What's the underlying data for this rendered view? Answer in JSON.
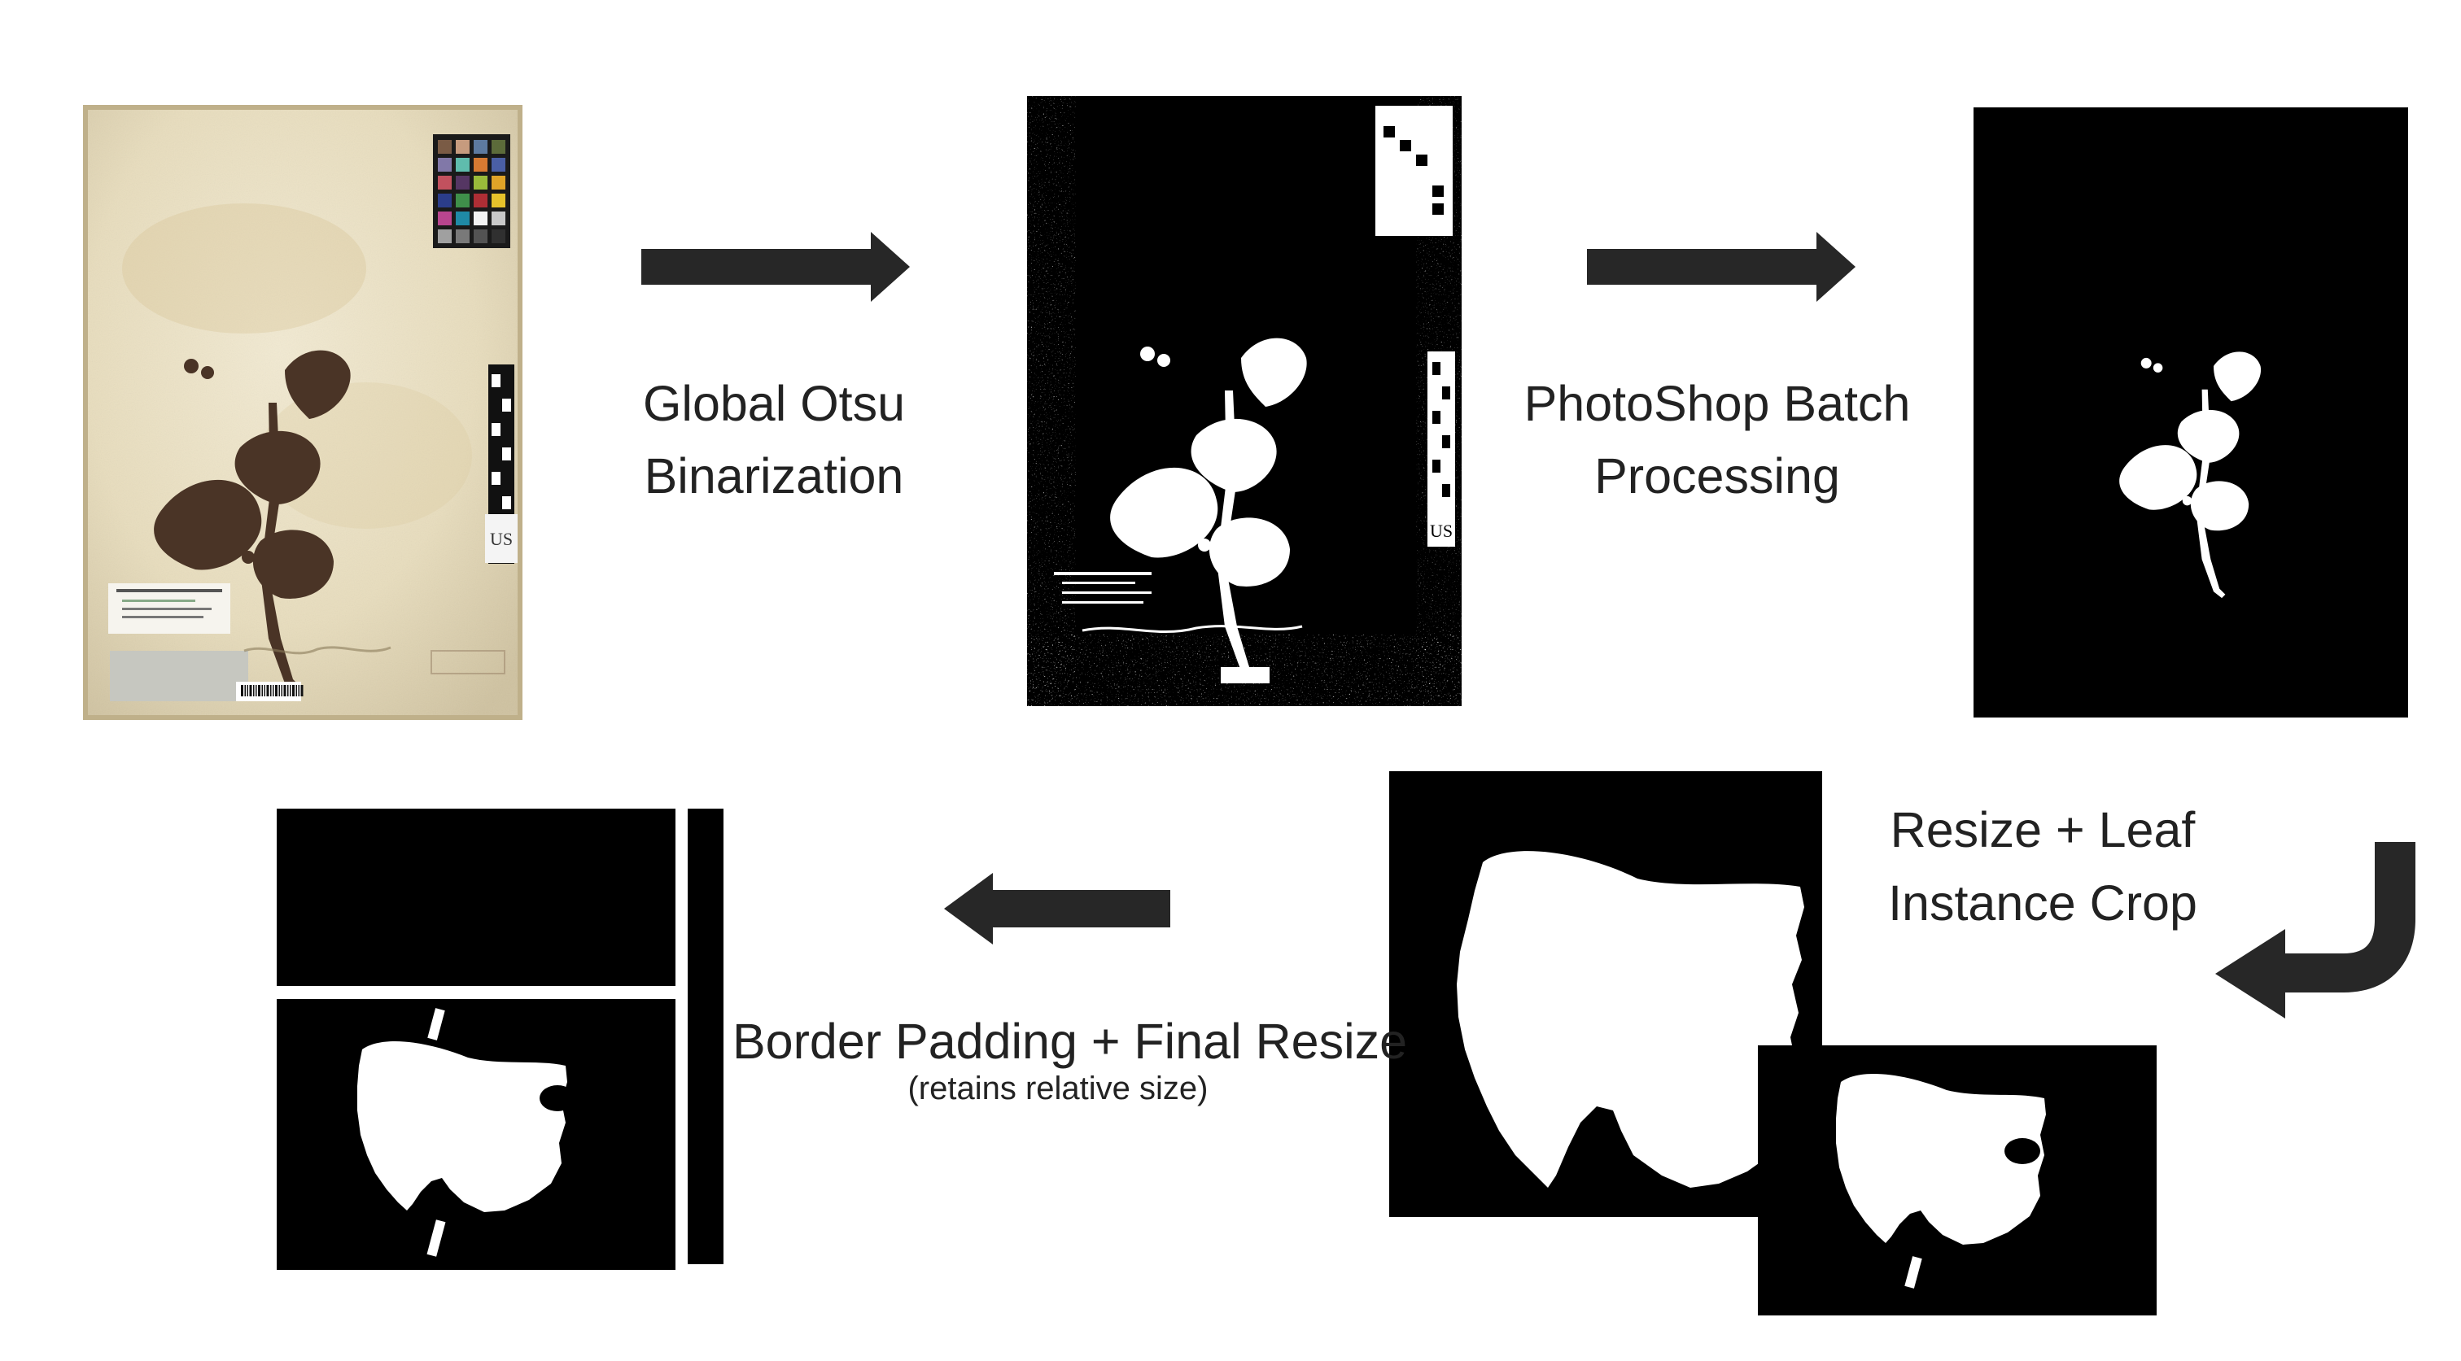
{
  "colors": {
    "background": "#ffffff",
    "arrow": "#272727",
    "mask_background": "#000000",
    "mask_foreground": "#ffffff",
    "herbarium_paper": "#ede3c7",
    "leaf_brown": "#4a3426",
    "text": "#222222"
  },
  "steps": {
    "otsu": {
      "line1": "Global Otsu",
      "line2": "Binarization"
    },
    "photoshop": {
      "line1": "PhotoShop Batch",
      "line2": "Processing"
    },
    "resize_crop": {
      "line1": "Resize + Leaf",
      "line2": "Instance Crop"
    },
    "border_padding": {
      "line1": "Border Padding + Final Resize",
      "line2": "(retains relative size)"
    }
  },
  "icons": {
    "arrow_right_1": "arrow-right-icon",
    "arrow_right_2": "arrow-right-icon",
    "arrow_curved": "arrow-down-left-icon",
    "arrow_left": "arrow-left-icon"
  }
}
